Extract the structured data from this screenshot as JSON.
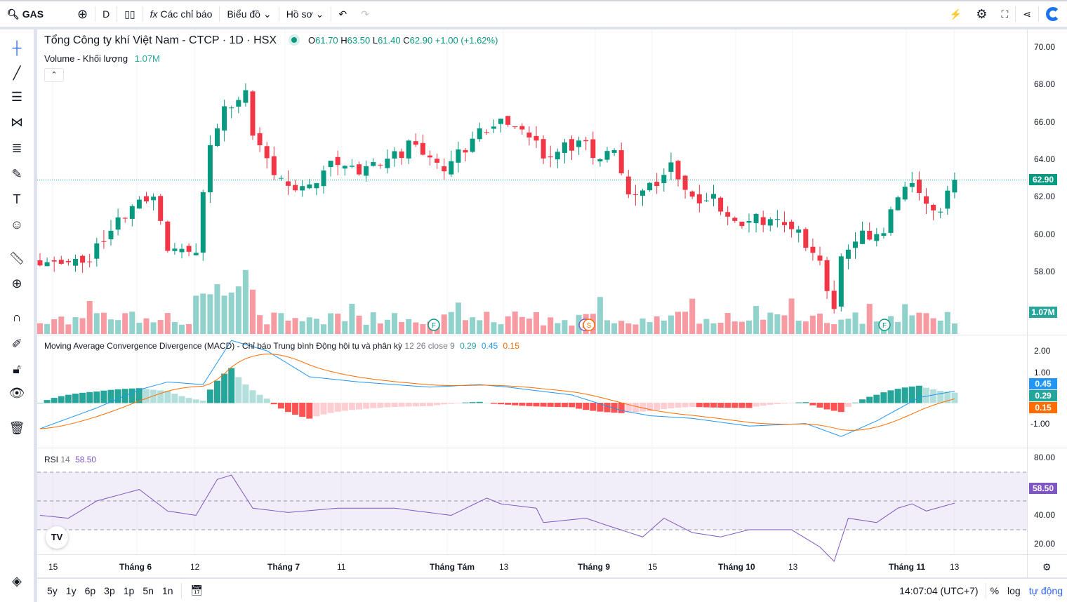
{
  "toolbar": {
    "symbol": "GAS",
    "interval": "D",
    "indicators": "Các chỉ báo",
    "chart": "Biểu đồ",
    "profile": "Hồ sơ"
  },
  "legend": {
    "title": "Tổng Công ty khí Việt Nam - CTCP · 1D · HSX",
    "o_label": "O",
    "o": "61.70",
    "h_label": "H",
    "h": "63.50",
    "l_label": "L",
    "l": "61.40",
    "c_label": "C",
    "c": "62.90",
    "change": "+1.00 (+1.62%)",
    "volume_label": "Volume - Khối lượng",
    "volume": "1.07M"
  },
  "macd": {
    "label": "Moving Average Convergence Divergence (MACD) - Chỉ báo Trung bình Động hội tụ và phân kỳ",
    "params": "12 26 close 9",
    "hist": "0.29",
    "macd": "0.45",
    "signal": "0.15"
  },
  "rsi": {
    "label": "RSI",
    "period": "14",
    "value": "58.50"
  },
  "price_axis": [
    "70.00",
    "68.00",
    "66.00",
    "64.00",
    "62.00",
    "60.00",
    "58.00"
  ],
  "price_tag": "62.90",
  "volume_tag": "1.07M",
  "macd_axis": [
    "2.00",
    "1.00",
    "-1.00"
  ],
  "rsi_axis": [
    "80.00",
    "40.00",
    "20.00"
  ],
  "time_axis": [
    "15",
    "Tháng 6",
    "12",
    "Tháng 7",
    "11",
    "Tháng Tám",
    "13",
    "Tháng 9",
    "15",
    "Tháng 10",
    "13",
    "Tháng 11",
    "13"
  ],
  "ranges": [
    "5y",
    "1y",
    "6p",
    "3p",
    "1p",
    "5n",
    "1n"
  ],
  "clock": "14:07:04 (UTC+7)",
  "pct": "%",
  "log": "log",
  "auto": "tự động",
  "colors": {
    "up": "#26a69a",
    "down": "#f23645",
    "macd": "#2196f3",
    "signal": "#ff6d00",
    "rsi": "#7e57c2"
  },
  "chart_data": {
    "type": "candlestick",
    "close_keypoints": [
      [
        0,
        58.5
      ],
      [
        7,
        58.5
      ],
      [
        8,
        59.3
      ],
      [
        13,
        61.5
      ],
      [
        16,
        62
      ],
      [
        18,
        59.3
      ],
      [
        22,
        59
      ],
      [
        24,
        64.8
      ],
      [
        26,
        66.5
      ],
      [
        29,
        67.5
      ],
      [
        30,
        65.5
      ],
      [
        32,
        64
      ],
      [
        35,
        62.5
      ],
      [
        38,
        62.6
      ],
      [
        41,
        63.8
      ],
      [
        45,
        63.5
      ],
      [
        51,
        64.3
      ],
      [
        52,
        65
      ],
      [
        57,
        63.5
      ],
      [
        62,
        65.5
      ],
      [
        66,
        66
      ],
      [
        70,
        65
      ],
      [
        71,
        64
      ],
      [
        76,
        65
      ],
      [
        79,
        64
      ],
      [
        81,
        64.5
      ],
      [
        83,
        62
      ],
      [
        86,
        62.5
      ],
      [
        89,
        63.5
      ],
      [
        92,
        61.8
      ],
      [
        95,
        61.8
      ],
      [
        98,
        60.5
      ],
      [
        101,
        60.8
      ],
      [
        104,
        60.8
      ],
      [
        107,
        60
      ],
      [
        110,
        58.5
      ],
      [
        112,
        56
      ],
      [
        113,
        58.8
      ],
      [
        116,
        60
      ],
      [
        119,
        60
      ],
      [
        120,
        61.5
      ],
      [
        123,
        62.9
      ],
      [
        125,
        61.5
      ],
      [
        127,
        61.2
      ],
      [
        129,
        62.9
      ]
    ],
    "macd_keypoints": [
      [
        0,
        -1
      ],
      [
        8,
        -0.2
      ],
      [
        14,
        0.5
      ],
      [
        18,
        0.8
      ],
      [
        23,
        0.7
      ],
      [
        27,
        2.4
      ],
      [
        32,
        2.0
      ],
      [
        38,
        1.0
      ],
      [
        45,
        0.8
      ],
      [
        55,
        0.6
      ],
      [
        62,
        0.7
      ],
      [
        66,
        0.6
      ],
      [
        75,
        0.3
      ],
      [
        82,
        -0.3
      ],
      [
        86,
        -0.5
      ],
      [
        92,
        -0.6
      ],
      [
        100,
        -0.9
      ],
      [
        108,
        -0.8
      ],
      [
        113,
        -1.3
      ],
      [
        118,
        -0.7
      ],
      [
        124,
        0.2
      ],
      [
        129,
        0.45
      ]
    ],
    "rsi_keypoints": [
      [
        0,
        50
      ],
      [
        4,
        48
      ],
      [
        8,
        60
      ],
      [
        14,
        68
      ],
      [
        18,
        53
      ],
      [
        22,
        50
      ],
      [
        25,
        75
      ],
      [
        27,
        78
      ],
      [
        30,
        55
      ],
      [
        35,
        52
      ],
      [
        42,
        55
      ],
      [
        50,
        55
      ],
      [
        58,
        50
      ],
      [
        63,
        62
      ],
      [
        65,
        58
      ],
      [
        70,
        55
      ],
      [
        71,
        45
      ],
      [
        77,
        48
      ],
      [
        80,
        43
      ],
      [
        85,
        35
      ],
      [
        88,
        48
      ],
      [
        92,
        38
      ],
      [
        96,
        35
      ],
      [
        100,
        40
      ],
      [
        106,
        40
      ],
      [
        110,
        28
      ],
      [
        112,
        18
      ],
      [
        114,
        48
      ],
      [
        118,
        45
      ],
      [
        121,
        55
      ],
      [
        123,
        58
      ],
      [
        125,
        53
      ],
      [
        129,
        58.5
      ]
    ]
  }
}
